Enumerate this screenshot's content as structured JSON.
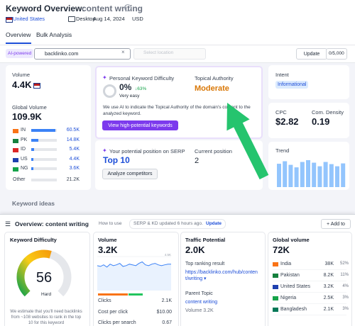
{
  "header": {
    "title": "Keyword Overview:",
    "keyword": "content writing",
    "country": "United States",
    "device": "Desktop",
    "date": "Aug 14, 2024",
    "currency": "USD"
  },
  "tabs": [
    "Overview",
    "Bulk Analysis"
  ],
  "search": {
    "badge": "AI-powered",
    "domain": "backlinko.com",
    "location_placeholder": "Select location",
    "button": "Update",
    "quota": "0/5,000"
  },
  "volume_card": {
    "label": "Volume",
    "value": "4.4K",
    "global_label": "Global Volume",
    "global_value": "109.9K",
    "countries": [
      {
        "code": "IN",
        "value": "60.5K"
      },
      {
        "code": "PK",
        "value": "14.8K"
      },
      {
        "code": "ID",
        "value": "5.4K"
      },
      {
        "code": "US",
        "value": "4.4K"
      },
      {
        "code": "NG",
        "value": "3.6K"
      }
    ],
    "other_label": "Other",
    "other_value": "21.2K"
  },
  "pkd_card": {
    "label": "Personal Keyword Difficulty",
    "value": "0%",
    "change": "↓63%",
    "rating": "Very easy",
    "ta_label": "Topical Authority",
    "ta_value": "Moderate",
    "note": "We use AI to indicate the Topical Authority of the domain's content to the analyzed keyword.",
    "button": "View high-potential keywords"
  },
  "serp_card": {
    "label": "Your potential position on SERP",
    "value": "Top 10",
    "current_label": "Current position",
    "current_value": "2",
    "button": "Analyze competitors"
  },
  "intent_card": {
    "label": "Intent",
    "value": "Informational"
  },
  "cpc_card": {
    "cpc_label": "CPC",
    "cpc_value": "$2.82",
    "density_label": "Com. Density",
    "density_value": "0.19"
  },
  "trend_card": {
    "label": "Trend",
    "values": [
      65,
      72,
      62,
      55,
      70,
      75,
      68,
      58,
      70,
      64,
      58,
      66
    ]
  },
  "keyword_ideas": "Keyword ideas",
  "panel": {
    "title": "Overview: content writing",
    "how": "How to use",
    "status": "SERP & KD updated 6 hours ago.",
    "update": "Update",
    "add": "+ Add to"
  },
  "kd_card": {
    "label": "Keyword Difficulty",
    "value": 56,
    "rating": "Hard",
    "note": "We estimate that you'll need backlinks from ~108 websites to rank in the top 10 for this keyword"
  },
  "volume2_card": {
    "label": "Volume",
    "value": "3.2K",
    "chart_top": {
      "value": 4.5,
      "label": "4.5K"
    },
    "chart_values": [
      3.3,
      3.2,
      3.4,
      3.1,
      3.5,
      3.3,
      3.4,
      3.6,
      3.2,
      3.3,
      3.5,
      3.4,
      3.3,
      3.6,
      3.8,
      3.4,
      3.3,
      3.5,
      3.6,
      3.4,
      3.3,
      3.4,
      3.5,
      3.5
    ],
    "rows": [
      {
        "label": "Clicks",
        "value": "2.1K"
      },
      {
        "label": "Cost per click",
        "value": "$10.00"
      },
      {
        "label": "Clicks per search",
        "value": "0.67"
      }
    ]
  },
  "traffic_card": {
    "label": "Traffic Potential",
    "value": "2.0K",
    "top_label": "Top ranking result",
    "url": "https://backlinko.com/hub/content/writing ▾",
    "parent_label": "Parent Topic",
    "parent": "content writing",
    "parent_volume": "Volume 3.2K"
  },
  "global_card": {
    "label": "Global volume",
    "value": "72K",
    "rows": [
      {
        "country": "India",
        "volume": "38K",
        "share": "52%"
      },
      {
        "country": "Pakistan",
        "volume": "8.2K",
        "share": "11%"
      },
      {
        "country": "United States",
        "volume": "3.2K",
        "share": "4%"
      },
      {
        "country": "Nigeria",
        "volume": "2.5K",
        "share": "3%"
      },
      {
        "country": "Bangladesh",
        "volume": "2.1K",
        "share": "3%"
      }
    ]
  }
}
